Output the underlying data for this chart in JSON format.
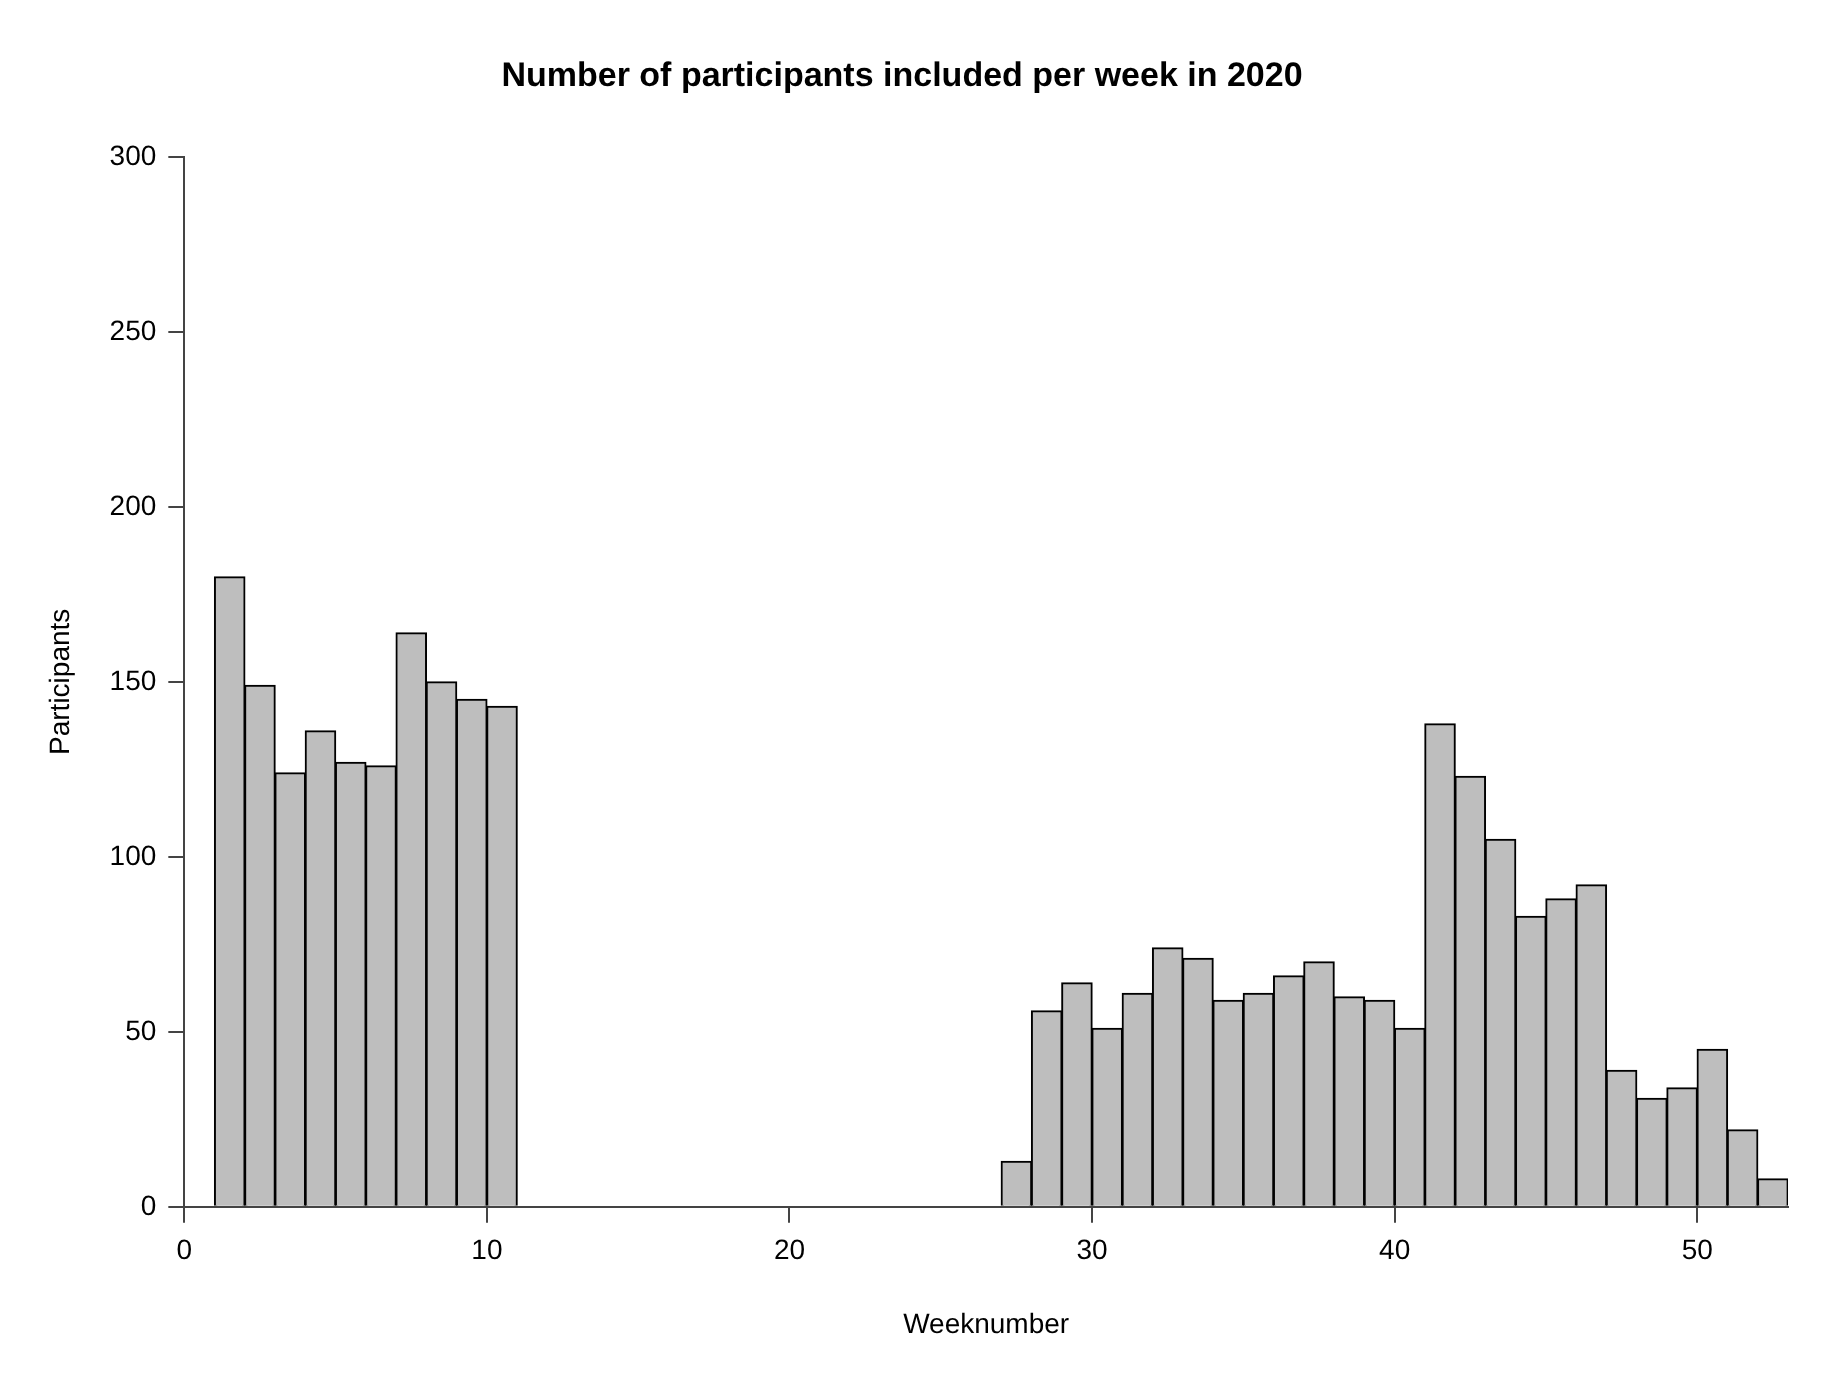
{
  "chart_data": {
    "type": "histogram",
    "title": "Number of participants included per week in 2020",
    "xlabel": "Weeknumber",
    "ylabel": "Participants",
    "bins": [
      1,
      2,
      3,
      4,
      5,
      6,
      7,
      8,
      9,
      10,
      11,
      12,
      13,
      14,
      15,
      16,
      17,
      18,
      19,
      20,
      21,
      22,
      23,
      24,
      25,
      26,
      27,
      28,
      29,
      30,
      31,
      32,
      33,
      34,
      35,
      36,
      37,
      38,
      39,
      40,
      41,
      42,
      43,
      44,
      45,
      46,
      47,
      48,
      49,
      50,
      51,
      52,
      53
    ],
    "values": [
      180,
      149,
      124,
      136,
      127,
      126,
      164,
      150,
      145,
      143,
      0,
      0,
      0,
      0,
      0,
      0,
      0,
      0,
      0,
      0,
      0,
      0,
      0,
      0,
      0,
      0,
      13,
      56,
      64,
      51,
      61,
      74,
      71,
      59,
      61,
      66,
      70,
      60,
      59,
      51,
      138,
      123,
      105,
      83,
      88,
      92,
      39,
      31,
      34,
      45,
      22,
      8
    ],
    "color": "#bebebe",
    "xlim": [
      0,
      53
    ],
    "xticks": [
      0,
      10,
      20,
      30,
      40,
      50
    ],
    "ylim": [
      0,
      300
    ],
    "yticks": [
      0,
      50,
      100,
      150,
      200,
      250,
      300
    ],
    "grid": false,
    "legend": false
  }
}
